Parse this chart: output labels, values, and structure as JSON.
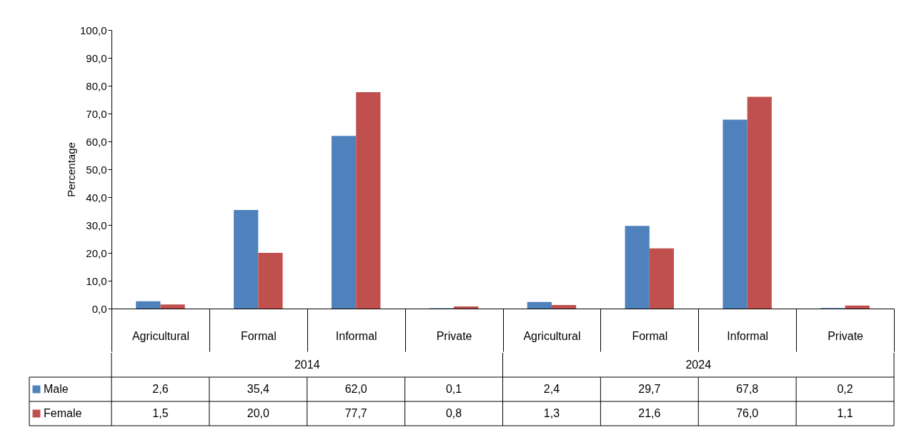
{
  "chart_data": {
    "type": "bar",
    "ylabel": "Percentage",
    "categories": [
      "Agricultural",
      "Formal",
      "Informal",
      "Private",
      "Agricultural",
      "Formal",
      "Informal",
      "Private"
    ],
    "series": [
      {
        "name": "Male",
        "color": "#4f81bd",
        "values": [
          2.6,
          35.4,
          62.0,
          0.1,
          2.4,
          29.7,
          67.8,
          0.2
        ],
        "value_labels": [
          "2,6",
          "35,4",
          "62,0",
          "0,1",
          "2,4",
          "29,7",
          "67,8",
          "0,2"
        ]
      },
      {
        "name": "Female",
        "color": "#c0504d",
        "values": [
          1.5,
          20.0,
          77.7,
          0.8,
          1.3,
          21.6,
          76.0,
          1.1
        ],
        "value_labels": [
          "1,5",
          "20,0",
          "77,7",
          "0,8",
          "1,3",
          "21,6",
          "76,0",
          "1,1"
        ]
      }
    ],
    "annotations": [
      "2014",
      "2024"
    ],
    "ylim": [
      0,
      100
    ],
    "yticks": [
      {
        "value": 0,
        "label": "0,0"
      },
      {
        "value": 10,
        "label": "10,0"
      },
      {
        "value": 20,
        "label": "20,0"
      },
      {
        "value": 30,
        "label": "30,0"
      },
      {
        "value": 40,
        "label": "40,0"
      },
      {
        "value": 50,
        "label": "50,0"
      },
      {
        "value": 60,
        "label": "60,0"
      },
      {
        "value": 70,
        "label": "70,0"
      },
      {
        "value": 80,
        "label": "80,0"
      },
      {
        "value": 90,
        "label": "90,0"
      },
      {
        "value": 100,
        "label": "100,0"
      }
    ],
    "legend": "bottom",
    "grid": false
  }
}
